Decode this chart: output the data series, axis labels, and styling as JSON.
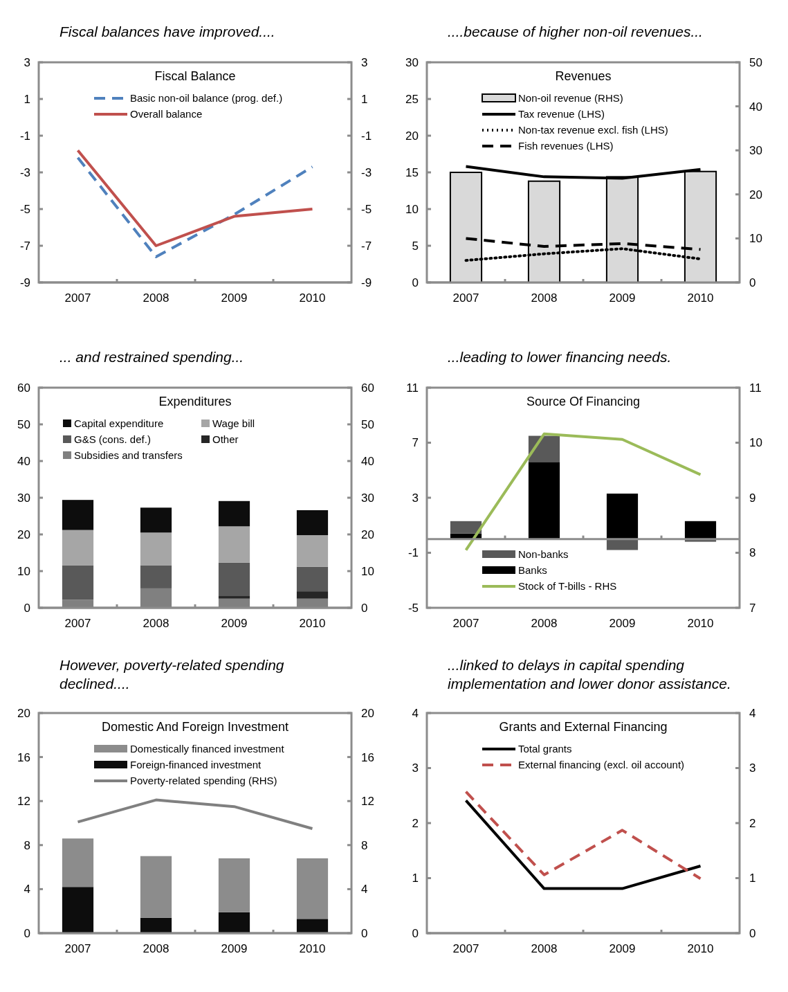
{
  "chart_data": [
    {
      "type": "line",
      "title": "Fiscal balances have improved....",
      "subtitle": "Fiscal Balance",
      "categories": [
        "2007",
        "2008",
        "2009",
        "2010"
      ],
      "ylim": [
        -9,
        3
      ],
      "yticks": [
        -9,
        -7,
        -5,
        -3,
        -1,
        1,
        3
      ],
      "y2lim": [
        -9,
        3
      ],
      "y2ticks": [
        -9,
        -7,
        -5,
        -3,
        -1,
        1,
        3
      ],
      "legend": "top",
      "series": [
        {
          "name": "Basic non-oil balance (prog. def.)",
          "color": "#4f81bd",
          "line_style": "dashed",
          "values": [
            -2.2,
            -7.6,
            -5.3,
            -2.7
          ]
        },
        {
          "name": "Overall balance",
          "color": "#c0504d",
          "line_style": "solid",
          "values": [
            -1.8,
            -7.0,
            -5.4,
            -5.0
          ]
        }
      ]
    },
    {
      "type": "bar",
      "title": "....because of higher non-oil revenues...",
      "subtitle": "Revenues",
      "categories": [
        "2007",
        "2008",
        "2009",
        "2010"
      ],
      "ylim": [
        0,
        30
      ],
      "yticks": [
        0,
        5,
        10,
        15,
        20,
        25,
        30
      ],
      "y2lim": [
        0,
        50
      ],
      "y2ticks": [
        0,
        10,
        20,
        30,
        40,
        50
      ],
      "legend": "top",
      "series": [
        {
          "name": "Non-oil revenue (RHS)",
          "type": "bar",
          "axis": "y2",
          "color": "#d9d9d9",
          "values": [
            25,
            23,
            24,
            25.2
          ]
        },
        {
          "name": "Tax revenue (LHS)",
          "type": "line",
          "color": "#000000",
          "line_style": "solid",
          "values": [
            15.8,
            14.4,
            14.2,
            15.4
          ]
        },
        {
          "name": "Non-tax revenue excl. fish (LHS)",
          "type": "line",
          "color": "#000000",
          "line_style": "dotted",
          "values": [
            3.0,
            3.9,
            4.6,
            3.2
          ]
        },
        {
          "name": "Fish revenues (LHS)",
          "type": "line",
          "color": "#000000",
          "line_style": "dashed",
          "values": [
            6.0,
            4.9,
            5.3,
            4.5
          ]
        }
      ]
    },
    {
      "type": "bar",
      "stacked": true,
      "title": "... and restrained spending...",
      "subtitle": "Expenditures",
      "categories": [
        "2007",
        "2008",
        "2009",
        "2010"
      ],
      "ylim": [
        0,
        60
      ],
      "yticks": [
        0,
        10,
        20,
        30,
        40,
        50,
        60
      ],
      "y2lim": [
        0,
        60
      ],
      "y2ticks": [
        0,
        10,
        20,
        30,
        40,
        50,
        60
      ],
      "legend": "top left",
      "series": [
        {
          "name": "Subsidies and transfers",
          "color": "#808080",
          "values": [
            2.2,
            5.3,
            2.5,
            2.5
          ]
        },
        {
          "name": "Other",
          "color": "#262626",
          "values": [
            0,
            0,
            0.7,
            2.0
          ]
        },
        {
          "name": "G&S (cons. def.)",
          "color": "#595959",
          "values": [
            9.4,
            6.3,
            9.1,
            6.7
          ]
        },
        {
          "name": "Wage bill",
          "color": "#a6a6a6",
          "values": [
            9.6,
            8.9,
            9.9,
            8.6
          ]
        },
        {
          "name": "Capital expenditure",
          "color": "#0d0d0d",
          "values": [
            8.2,
            6.8,
            6.9,
            6.8
          ]
        }
      ]
    },
    {
      "type": "bar",
      "stacked": true,
      "title": "...leading to lower financing needs.",
      "subtitle": "Source Of Financing",
      "categories": [
        "2007",
        "2008",
        "2009",
        "2010"
      ],
      "ylim": [
        -5,
        11
      ],
      "yticks": [
        -5,
        -1,
        3,
        7,
        11
      ],
      "y2lim": [
        7,
        11
      ],
      "y2ticks": [
        7,
        8,
        9,
        10,
        11
      ],
      "legend": "bottom",
      "series": [
        {
          "name": "Banks",
          "color": "#000000",
          "values": [
            0.4,
            5.6,
            3.3,
            1.3
          ]
        },
        {
          "name": "Non-banks",
          "color": "#595959",
          "values": [
            0.9,
            1.9,
            -0.8,
            -0.2
          ]
        },
        {
          "name": "Stock of T-bills - RHS",
          "type": "line",
          "axis": "y2",
          "color": "#9bbb59",
          "line_style": "solid",
          "values": [
            8.05,
            10.16,
            10.06,
            9.42
          ]
        }
      ]
    },
    {
      "type": "bar",
      "stacked": true,
      "title": "However, poverty-related spending declined....",
      "subtitle": "Domestic And Foreign Investment",
      "categories": [
        "2007",
        "2008",
        "2009",
        "2010"
      ],
      "ylim": [
        0,
        20
      ],
      "yticks": [
        0,
        4,
        8,
        12,
        16,
        20
      ],
      "y2lim": [
        0,
        20
      ],
      "y2ticks": [
        0,
        4,
        8,
        12,
        16,
        20
      ],
      "legend": "top",
      "series": [
        {
          "name": "Foreign-financed investment",
          "color": "#0d0d0d",
          "values": [
            4.2,
            1.4,
            1.9,
            1.3
          ]
        },
        {
          "name": "Domestically financed investment",
          "color": "#8c8c8c",
          "values": [
            4.4,
            5.6,
            4.9,
            5.5
          ]
        },
        {
          "name": "Poverty-related spending (RHS)",
          "type": "line",
          "axis": "y2",
          "color": "#808080",
          "line_style": "solid",
          "values": [
            10.1,
            12.1,
            11.5,
            9.5
          ]
        }
      ]
    },
    {
      "type": "line",
      "title": "...linked to delays in capital spending implementation and lower donor assistance.",
      "subtitle": "Grants and External Financing",
      "categories": [
        "2007",
        "2008",
        "2009",
        "2010"
      ],
      "ylim": [
        0,
        4
      ],
      "yticks": [
        0,
        1,
        2,
        3,
        4
      ],
      "y2lim": [
        0,
        4
      ],
      "y2ticks": [
        0,
        1,
        2,
        3,
        4
      ],
      "legend": "top",
      "series": [
        {
          "name": "Total grants",
          "color": "#000000",
          "line_style": "solid",
          "values": [
            2.41,
            0.81,
            0.81,
            1.22
          ]
        },
        {
          "name": "External financing (excl. oil account)",
          "color": "#c0504d",
          "line_style": "dashed",
          "values": [
            2.57,
            1.06,
            1.87,
            0.99
          ]
        }
      ]
    }
  ]
}
